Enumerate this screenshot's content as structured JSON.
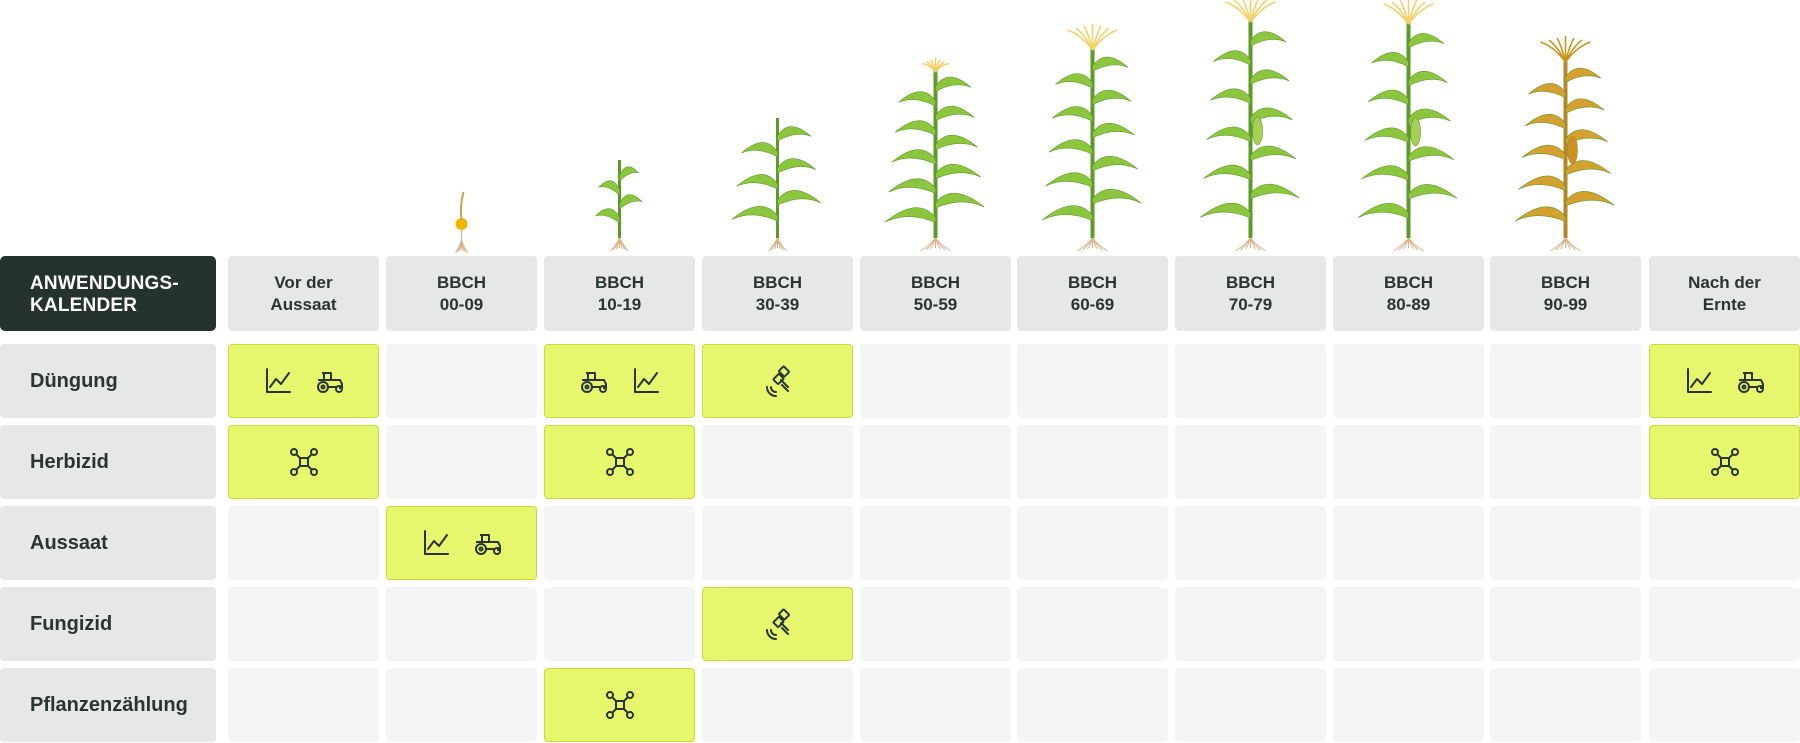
{
  "corner": {
    "line1": "ANWENDUNGS-",
    "line2": "KALENDER"
  },
  "columns": [
    {
      "line1": "Vor der",
      "line2": "Aussaat",
      "plant": null
    },
    {
      "line1": "BBCH",
      "line2": "00-09",
      "plant": {
        "stage": 0,
        "height": 56
      }
    },
    {
      "line1": "BBCH",
      "line2": "10-19",
      "plant": {
        "stage": 1,
        "height": 100
      }
    },
    {
      "line1": "BBCH",
      "line2": "30-39",
      "plant": {
        "stage": 2,
        "height": 142
      }
    },
    {
      "line1": "BBCH",
      "line2": "50-59",
      "plant": {
        "stage": 3,
        "height": 190
      }
    },
    {
      "line1": "BBCH",
      "line2": "60-69",
      "plant": {
        "stage": 4,
        "height": 212
      }
    },
    {
      "line1": "BBCH",
      "line2": "70-79",
      "plant": {
        "stage": 5,
        "height": 240
      }
    },
    {
      "line1": "BBCH",
      "line2": "80-89",
      "plant": {
        "stage": 6,
        "height": 238
      }
    },
    {
      "line1": "BBCH",
      "line2": "90-99",
      "plant": {
        "stage": 7,
        "height": 200
      }
    },
    {
      "line1": "Nach der",
      "line2": "Ernte",
      "plant": null
    }
  ],
  "rows": [
    {
      "label": "Düngung",
      "cells": [
        [
          "chart",
          "tractor"
        ],
        [],
        [
          "tractor",
          "chart"
        ],
        [
          "satellite"
        ],
        [],
        [],
        [],
        [],
        [],
        [
          "chart",
          "tractor"
        ]
      ]
    },
    {
      "label": "Herbizid",
      "cells": [
        [
          "drone"
        ],
        [],
        [
          "drone"
        ],
        [],
        [],
        [],
        [],
        [],
        [],
        [
          "drone"
        ]
      ]
    },
    {
      "label": "Aussaat",
      "cells": [
        [],
        [
          "chart",
          "tractor"
        ],
        [],
        [],
        [],
        [],
        [],
        [],
        [],
        []
      ]
    },
    {
      "label": "Fungizid",
      "cells": [
        [],
        [],
        [],
        [
          "satellite"
        ],
        [],
        [],
        [],
        [],
        [],
        []
      ]
    },
    {
      "label": "Pflanzenzählung",
      "cells": [
        [],
        [],
        [
          "drone"
        ],
        [],
        [],
        [],
        [],
        [],
        [],
        []
      ]
    }
  ],
  "colors": {
    "active": "#e6f76e",
    "leaf_green": "#8cc63f",
    "leaf_dark": "#5e9a2a",
    "leaf_dry": "#d4a030",
    "tassel": "#f1d26a",
    "root": "#d9b28c"
  }
}
